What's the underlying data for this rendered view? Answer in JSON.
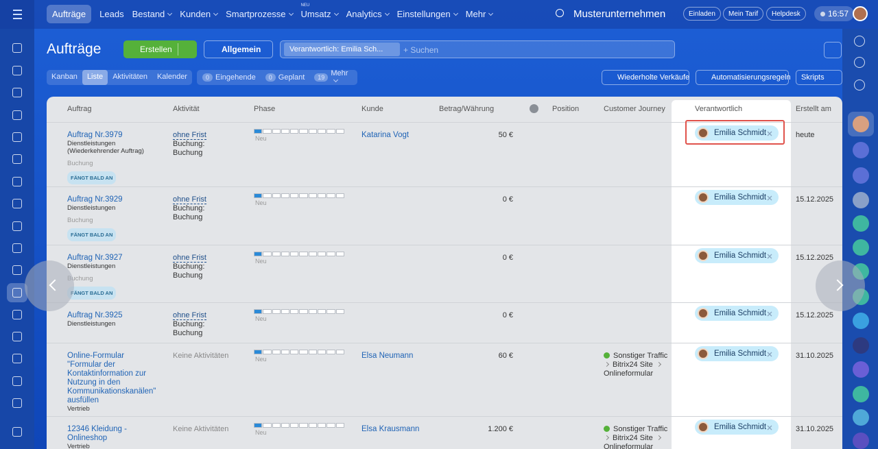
{
  "topbar": {
    "nav": [
      "Aufträge",
      "Leads",
      "Bestand",
      "Kunden",
      "Smartprozesse",
      "Umsatz",
      "Analytics",
      "Einstellungen",
      "Mehr"
    ],
    "new_badge": "NEU",
    "company": "Musterunternehmen",
    "buttons": [
      "Einladen",
      "Mein Tarif",
      "Helpdesk"
    ],
    "time": "16:57"
  },
  "header": {
    "title": "Aufträge",
    "create": "Erstellen",
    "pipeline": "Allgemein",
    "filter_tag": "Verantwortlich: Emilia Sch...",
    "search_placeholder": "+ Suchen"
  },
  "views": [
    "Kanban",
    "Liste",
    "Aktivitäten",
    "Kalender"
  ],
  "counters": [
    {
      "count": 0,
      "label": "Eingehende"
    },
    {
      "count": 0,
      "label": "Geplant"
    },
    {
      "count": 19,
      "label": "Mehr"
    }
  ],
  "actions": [
    "Wiederholte Verkäufe",
    "Automatisierungsregeln",
    "Skripts"
  ],
  "table": {
    "columns": [
      "Auftrag",
      "Aktivität",
      "Phase",
      "Kunde",
      "Betrag/Währung",
      "Position",
      "Customer Journey",
      "Verantwortlich",
      "Erstellt am"
    ],
    "rows": [
      {
        "title": "Auftrag Nr.3979",
        "desc": "Dienstleistungen (Wiederkehrender Auftrag)",
        "stage": "Buchung",
        "badge": "FÄNGT BALD AN",
        "activity": "ohne Frist",
        "activity_detail": "Buchung: Buchung",
        "phase": "Neu",
        "customer": "Katarina Vogt",
        "amount": "50 €",
        "responsible": "Emilia Schmidt",
        "created": "heute"
      },
      {
        "title": "Auftrag Nr.3929",
        "desc": "Dienstleistungen",
        "stage": "Buchung",
        "badge": "FÄNGT BALD AN",
        "activity": "ohne Frist",
        "activity_detail": "Buchung: Buchung",
        "phase": "Neu",
        "amount": "0 €",
        "responsible": "Emilia Schmidt",
        "created": "15.12.2025"
      },
      {
        "title": "Auftrag Nr.3927",
        "desc": "Dienstleistungen",
        "stage": "Buchung",
        "badge": "FÄNGT BALD AN",
        "activity": "ohne Frist",
        "activity_detail": "Buchung: Buchung",
        "phase": "Neu",
        "amount": "0 €",
        "responsible": "Emilia Schmidt",
        "created": "15.12.2025"
      },
      {
        "title": "Auftrag Nr.3925",
        "desc": "Dienstleistungen",
        "activity": "ohne Frist",
        "activity_detail": "Buchung: Buchung",
        "phase": "Neu",
        "amount": "0 €",
        "responsible": "Emilia Schmidt",
        "created": "15.12.2025"
      },
      {
        "title": "Online-Formular \"Formular der Kontaktinformation zur Nutzung in den Kommunikationskanälen\" ausfüllen",
        "desc": "Vertrieb",
        "no_activity": "Keine Aktivitäten",
        "phase": "Neu",
        "customer": "Elsa Neumann",
        "amount": "60 €",
        "journey": [
          "Sonstiger Traffic",
          "Bitrix24 Site",
          "Onlineformular"
        ],
        "responsible": "Emilia Schmidt",
        "created": "31.10.2025"
      },
      {
        "title": "12346 Kleidung - Onlineshop",
        "desc": "Vertrieb",
        "no_activity": "Keine Aktivitäten",
        "phase": "Neu",
        "customer": "Elsa Krausmann",
        "amount": "1.200 €",
        "journey": [
          "Sonstiger Traffic",
          "Bitrix24 Site",
          "Onlineformular"
        ],
        "responsible": "Emilia Schmidt",
        "created": "31.10.2025"
      }
    ]
  }
}
